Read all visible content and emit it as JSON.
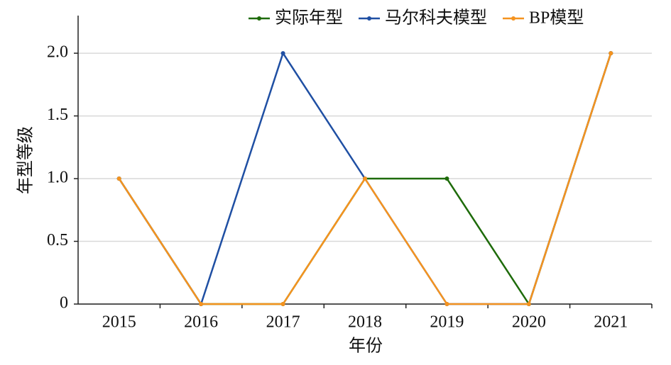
{
  "chart_data": {
    "type": "line",
    "x_label": "年份",
    "y_label": "年型等级",
    "categories": [
      "2015",
      "2016",
      "2017",
      "2018",
      "2019",
      "2020",
      "2021"
    ],
    "series": [
      {
        "name": "实际年型",
        "color": "#1e6b0a",
        "values": [
          1,
          0,
          0,
          1,
          1,
          0,
          2
        ]
      },
      {
        "name": "马尔科夫模型",
        "color": "#1f4fa3",
        "values": [
          1,
          0,
          2,
          1,
          0,
          0,
          2
        ]
      },
      {
        "name": "BP模型",
        "color": "#f5931f",
        "values": [
          1,
          0,
          0,
          1,
          0,
          0,
          2
        ]
      }
    ],
    "ylim": [
      0,
      2.3
    ],
    "yticks": [
      0,
      0.5,
      {
        "value": 1,
        "label": "1.0"
      },
      1.5,
      {
        "value": 2,
        "label": "2.0"
      }
    ],
    "grid": true,
    "legend": "top"
  }
}
